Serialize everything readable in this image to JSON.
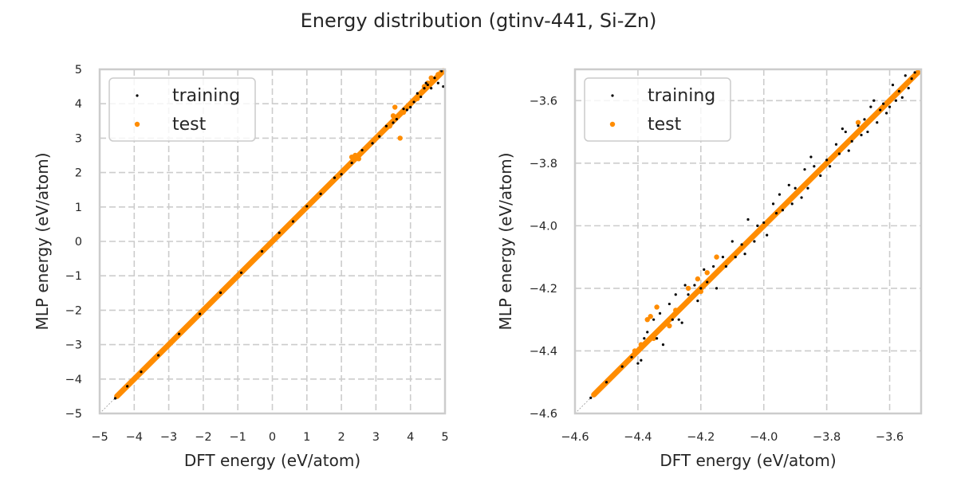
{
  "figure": {
    "title": "Energy distribution (gtinv-441, Si-Zn)"
  },
  "colors": {
    "training": "#000000",
    "test": "#ff8c00",
    "grid": "#cccccc",
    "text": "#262626"
  },
  "chart_data": [
    {
      "type": "scatter",
      "title": "",
      "xlabel": "DFT energy (eV/atom)",
      "ylabel": "MLP energy (eV/atom)",
      "xlim": [
        -5,
        5
      ],
      "ylim": [
        -5,
        5
      ],
      "xticks": [
        -5,
        -4,
        -3,
        -2,
        -1,
        0,
        1,
        2,
        3,
        4,
        5
      ],
      "yticks": [
        -5,
        -4,
        -3,
        -2,
        -1,
        0,
        1,
        2,
        3,
        4,
        5
      ],
      "xtick_labels": [
        "−5",
        "−4",
        "−3",
        "−2",
        "−1",
        "0",
        "1",
        "2",
        "3",
        "4",
        "5"
      ],
      "ytick_labels": [
        "−5",
        "−4",
        "−3",
        "−2",
        "−1",
        "0",
        "1",
        "2",
        "3",
        "4",
        "5"
      ],
      "grid": true,
      "legend": {
        "position": "top-left",
        "entries": [
          "training",
          "test"
        ]
      },
      "reference_line": "y = x",
      "series": [
        {
          "name": "training",
          "color": "#000000",
          "points": [
            [
              -4.55,
              -4.56
            ],
            [
              -4.2,
              -4.21
            ],
            [
              -3.8,
              -3.79
            ],
            [
              -3.3,
              -3.31
            ],
            [
              -2.7,
              -2.69
            ],
            [
              -2.1,
              -2.11
            ],
            [
              -1.5,
              -1.49
            ],
            [
              -0.9,
              -0.91
            ],
            [
              -0.3,
              -0.29
            ],
            [
              0.2,
              0.25
            ],
            [
              0.6,
              0.58
            ],
            [
              1.0,
              1.02
            ],
            [
              1.4,
              1.38
            ],
            [
              1.8,
              1.85
            ],
            [
              2.0,
              1.95
            ],
            [
              2.3,
              2.28
            ],
            [
              2.6,
              2.65
            ],
            [
              2.9,
              2.85
            ],
            [
              3.1,
              3.05
            ],
            [
              3.3,
              3.35
            ],
            [
              3.5,
              3.45
            ],
            [
              3.6,
              3.55
            ],
            [
              3.8,
              3.85
            ],
            [
              3.9,
              3.82
            ],
            [
              4.1,
              4.05
            ],
            [
              4.2,
              4.3
            ],
            [
              4.3,
              4.2
            ],
            [
              4.4,
              4.45
            ],
            [
              4.5,
              4.55
            ],
            [
              4.6,
              4.45
            ],
            [
              4.7,
              4.75
            ],
            [
              4.8,
              4.6
            ],
            [
              4.9,
              4.95
            ],
            [
              4.95,
              4.5
            ],
            [
              4.0,
              3.9
            ],
            [
              4.45,
              4.6
            ]
          ]
        },
        {
          "name": "test",
          "color": "#ff8c00",
          "points": [
            [
              -4.5,
              -4.5
            ],
            [
              -4.0,
              -4.0
            ],
            [
              -3.5,
              -3.5
            ],
            [
              -3.0,
              -3.0
            ],
            [
              -2.5,
              -2.5
            ],
            [
              -2.0,
              -2.0
            ],
            [
              -1.5,
              -1.5
            ],
            [
              -1.0,
              -1.0
            ],
            [
              -0.5,
              -0.5
            ],
            [
              0.0,
              0.0
            ],
            [
              0.5,
              0.5
            ],
            [
              1.0,
              1.0
            ],
            [
              1.5,
              1.5
            ],
            [
              2.0,
              2.0
            ],
            [
              2.3,
              2.45
            ],
            [
              2.4,
              2.5
            ],
            [
              2.5,
              2.4
            ],
            [
              2.7,
              2.7
            ],
            [
              3.0,
              3.0
            ],
            [
              3.2,
              3.2
            ],
            [
              3.4,
              3.35
            ],
            [
              3.5,
              3.65
            ],
            [
              3.55,
              3.9
            ],
            [
              3.7,
              3.0
            ],
            [
              3.8,
              3.75
            ],
            [
              4.0,
              4.0
            ],
            [
              4.2,
              4.15
            ],
            [
              4.4,
              4.5
            ],
            [
              4.5,
              4.6
            ],
            [
              4.6,
              4.75
            ],
            [
              4.7,
              4.7
            ],
            [
              4.8,
              4.85
            ],
            [
              4.9,
              4.95
            ]
          ]
        }
      ]
    },
    {
      "type": "scatter",
      "title": "",
      "xlabel": "DFT energy (eV/atom)",
      "ylabel": "MLP energy (eV/atom)",
      "xlim": [
        -4.6,
        -3.5
      ],
      "ylim": [
        -4.6,
        -3.5
      ],
      "xticks": [
        -4.6,
        -4.4,
        -4.2,
        -4.0,
        -3.8,
        -3.6
      ],
      "yticks": [
        -4.6,
        -4.4,
        -4.2,
        -4.0,
        -3.8,
        -3.6
      ],
      "xtick_labels": [
        "−4.6",
        "−4.4",
        "−4.2",
        "−4.0",
        "−3.8",
        "−3.6"
      ],
      "ytick_labels": [
        "−4.6",
        "−4.4",
        "−4.2",
        "−4.0",
        "−3.8",
        "−3.6"
      ],
      "grid": true,
      "legend": {
        "position": "top-left",
        "entries": [
          "training",
          "test"
        ]
      },
      "reference_line": "y = x",
      "series": [
        {
          "name": "training",
          "color": "#000000",
          "points": [
            [
              -4.55,
              -4.55
            ],
            [
              -4.5,
              -4.5
            ],
            [
              -4.45,
              -4.45
            ],
            [
              -4.42,
              -4.42
            ],
            [
              -4.4,
              -4.44
            ],
            [
              -4.39,
              -4.43
            ],
            [
              -4.38,
              -4.36
            ],
            [
              -4.37,
              -4.34
            ],
            [
              -4.35,
              -4.3
            ],
            [
              -4.34,
              -4.36
            ],
            [
              -4.33,
              -4.28
            ],
            [
              -4.32,
              -4.38
            ],
            [
              -4.3,
              -4.25
            ],
            [
              -4.29,
              -4.3
            ],
            [
              -4.28,
              -4.22
            ],
            [
              -4.27,
              -4.3
            ],
            [
              -4.26,
              -4.31
            ],
            [
              -4.25,
              -4.19
            ],
            [
              -4.24,
              -4.22
            ],
            [
              -4.22,
              -4.19
            ],
            [
              -4.21,
              -4.24
            ],
            [
              -4.2,
              -4.2
            ],
            [
              -4.19,
              -4.14
            ],
            [
              -4.18,
              -4.18
            ],
            [
              -4.16,
              -4.13
            ],
            [
              -4.15,
              -4.2
            ],
            [
              -4.13,
              -4.1
            ],
            [
              -4.12,
              -4.13
            ],
            [
              -4.1,
              -4.05
            ],
            [
              -4.09,
              -4.1
            ],
            [
              -4.07,
              -4.06
            ],
            [
              -4.06,
              -4.09
            ],
            [
              -4.05,
              -3.98
            ],
            [
              -4.03,
              -4.05
            ],
            [
              -4.02,
              -4.0
            ],
            [
              -4.0,
              -3.99
            ],
            [
              -3.99,
              -4.03
            ],
            [
              -3.97,
              -3.93
            ],
            [
              -3.96,
              -3.96
            ],
            [
              -3.95,
              -3.9
            ],
            [
              -3.94,
              -3.95
            ],
            [
              -3.92,
              -3.87
            ],
            [
              -3.91,
              -3.93
            ],
            [
              -3.9,
              -3.88
            ],
            [
              -3.88,
              -3.91
            ],
            [
              -3.87,
              -3.82
            ],
            [
              -3.86,
              -3.88
            ],
            [
              -3.85,
              -3.78
            ],
            [
              -3.84,
              -3.81
            ],
            [
              -3.82,
              -3.84
            ],
            [
              -3.8,
              -3.79
            ],
            [
              -3.79,
              -3.81
            ],
            [
              -3.77,
              -3.74
            ],
            [
              -3.76,
              -3.77
            ],
            [
              -3.75,
              -3.69
            ],
            [
              -3.74,
              -3.7
            ],
            [
              -3.73,
              -3.76
            ],
            [
              -3.72,
              -3.73
            ],
            [
              -3.7,
              -3.68
            ],
            [
              -3.69,
              -3.71
            ],
            [
              -3.68,
              -3.66
            ],
            [
              -3.67,
              -3.7
            ],
            [
              -3.66,
              -3.62
            ],
            [
              -3.65,
              -3.6
            ],
            [
              -3.64,
              -3.67
            ],
            [
              -3.63,
              -3.63
            ],
            [
              -3.62,
              -3.61
            ],
            [
              -3.61,
              -3.64
            ],
            [
              -3.6,
              -3.62
            ],
            [
              -3.59,
              -3.55
            ],
            [
              -3.58,
              -3.6
            ],
            [
              -3.57,
              -3.57
            ],
            [
              -3.56,
              -3.59
            ],
            [
              -3.55,
              -3.52
            ],
            [
              -3.54,
              -3.56
            ],
            [
              -3.53,
              -3.53
            ],
            [
              -3.52,
              -3.51
            ]
          ]
        },
        {
          "name": "test",
          "color": "#ff8c00",
          "points": [
            [
              -4.54,
              -4.54
            ],
            [
              -4.52,
              -4.52
            ],
            [
              -4.5,
              -4.5
            ],
            [
              -4.48,
              -4.48
            ],
            [
              -4.46,
              -4.46
            ],
            [
              -4.44,
              -4.44
            ],
            [
              -4.42,
              -4.42
            ],
            [
              -4.41,
              -4.4
            ],
            [
              -4.39,
              -4.38
            ],
            [
              -4.37,
              -4.3
            ],
            [
              -4.36,
              -4.29
            ],
            [
              -4.35,
              -4.36
            ],
            [
              -4.34,
              -4.26
            ],
            [
              -4.33,
              -4.33
            ],
            [
              -4.31,
              -4.31
            ],
            [
              -4.3,
              -4.32
            ],
            [
              -4.28,
              -4.27
            ],
            [
              -4.26,
              -4.26
            ],
            [
              -4.24,
              -4.2
            ],
            [
              -4.23,
              -4.23
            ],
            [
              -4.21,
              -4.17
            ],
            [
              -4.2,
              -4.21
            ],
            [
              -4.18,
              -4.15
            ],
            [
              -4.17,
              -4.17
            ],
            [
              -4.15,
              -4.1
            ],
            [
              -4.14,
              -4.14
            ],
            [
              -4.12,
              -4.12
            ],
            [
              -4.1,
              -4.1
            ],
            [
              -4.08,
              -4.08
            ],
            [
              -4.06,
              -4.06
            ],
            [
              -4.04,
              -4.04
            ],
            [
              -4.02,
              -4.02
            ],
            [
              -4.0,
              -4.0
            ],
            [
              -3.98,
              -3.98
            ],
            [
              -3.96,
              -3.96
            ],
            [
              -3.94,
              -3.94
            ],
            [
              -3.92,
              -3.92
            ],
            [
              -3.9,
              -3.9
            ],
            [
              -3.88,
              -3.88
            ],
            [
              -3.86,
              -3.86
            ],
            [
              -3.84,
              -3.84
            ],
            [
              -3.82,
              -3.82
            ],
            [
              -3.8,
              -3.8
            ],
            [
              -3.78,
              -3.78
            ],
            [
              -3.76,
              -3.76
            ],
            [
              -3.74,
              -3.74
            ],
            [
              -3.72,
              -3.72
            ],
            [
              -3.7,
              -3.67
            ],
            [
              -3.68,
              -3.68
            ],
            [
              -3.66,
              -3.66
            ],
            [
              -3.64,
              -3.64
            ],
            [
              -3.62,
              -3.62
            ],
            [
              -3.6,
              -3.6
            ],
            [
              -3.58,
              -3.58
            ],
            [
              -3.56,
              -3.56
            ],
            [
              -3.54,
              -3.54
            ],
            [
              -3.52,
              -3.52
            ]
          ]
        }
      ]
    }
  ]
}
